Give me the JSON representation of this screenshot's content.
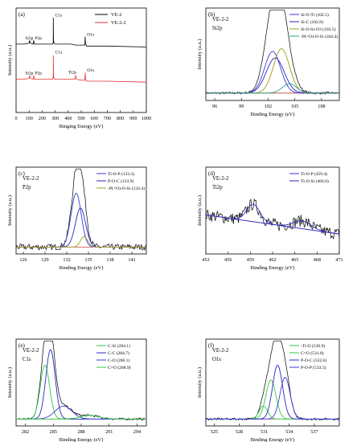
{
  "chart_data": [
    {
      "type": "line",
      "panel_label": "(a)",
      "xlabel": "Binging Energy (eV)",
      "ylabel": "Intensity (a.u.)",
      "xlim": [
        0,
        1000
      ],
      "xticks": [
        0,
        100,
        200,
        300,
        400,
        500,
        600,
        700,
        800,
        900,
        1000
      ],
      "legend": "top-right",
      "series": [
        {
          "name": "VE-2",
          "color": "#000000",
          "points": [
            [
              0,
              72
            ],
            [
              60,
              72
            ],
            [
              100,
              73
            ],
            [
              105,
              76
            ],
            [
              110,
              73
            ],
            [
              130,
              72
            ],
            [
              135,
              76
            ],
            [
              140,
              72
            ],
            [
              280,
              72
            ],
            [
              285,
              74
            ],
            [
              286,
              100
            ],
            [
              287,
              78
            ],
            [
              290,
              73
            ],
            [
              300,
              72
            ],
            [
              420,
              72
            ],
            [
              460,
              71
            ],
            [
              500,
              71
            ],
            [
              528,
              71
            ],
            [
              531,
              80
            ],
            [
              533,
              73
            ],
            [
              540,
              70
            ],
            [
              700,
              70
            ],
            [
              1000,
              69
            ]
          ]
        },
        {
          "name": "VE-2-2",
          "color": "#e53030",
          "points": [
            [
              0,
              35
            ],
            [
              60,
              35
            ],
            [
              100,
              36
            ],
            [
              105,
              39
            ],
            [
              110,
              36
            ],
            [
              130,
              35
            ],
            [
              135,
              39
            ],
            [
              140,
              35
            ],
            [
              280,
              35
            ],
            [
              285,
              37
            ],
            [
              286,
              60
            ],
            [
              287,
              41
            ],
            [
              290,
              36
            ],
            [
              300,
              35
            ],
            [
              450,
              35
            ],
            [
              459,
              39
            ],
            [
              462,
              35
            ],
            [
              500,
              34
            ],
            [
              528,
              34
            ],
            [
              531,
              42
            ],
            [
              533,
              36
            ],
            [
              540,
              33
            ],
            [
              700,
              33
            ],
            [
              1000,
              32
            ]
          ]
        }
      ],
      "annotations": [
        {
          "text": "C1s",
          "x": 300,
          "y": 101
        },
        {
          "text": "O1s",
          "x": 545,
          "y": 81
        },
        {
          "text": "Si2p",
          "x": 70,
          "y": 77
        },
        {
          "text": "P2p",
          "x": 145,
          "y": 77
        },
        {
          "text": "C1s",
          "x": 300,
          "y": 62
        },
        {
          "text": "Ti2p",
          "x": 400,
          "y": 41
        },
        {
          "text": "O1s",
          "x": 545,
          "y": 43
        },
        {
          "text": "Si2p",
          "x": 70,
          "y": 40
        },
        {
          "text": "P2p",
          "x": 145,
          "y": 40
        }
      ]
    },
    {
      "type": "line",
      "panel_label": "(b)",
      "sample": "VE-2-2",
      "element": "Si2p",
      "xlabel": "Binding Energy (eV)",
      "ylabel": "Intensity (a.u.)",
      "xlim": [
        95,
        110
      ],
      "xticks": [
        96,
        99,
        102,
        105,
        108
      ],
      "legend": "top-right",
      "series": [
        {
          "name": "Si-O-Ti (102.5)",
          "color": "#3a3ad8",
          "peak": {
            "center": 102.5,
            "height": 45,
            "width": 0.9
          }
        },
        {
          "name": "Si-C (102.8)",
          "color": "#2828c0",
          "peak": {
            "center": 102.8,
            "height": 38,
            "width": 1.0
          }
        },
        {
          "name": "Si-O-Si-O3 (103.5)",
          "color": "#a09a20",
          "peak": {
            "center": 103.5,
            "height": 48,
            "width": 0.9
          }
        },
        {
          "name": "-P(=O)-O-Si (104.4)",
          "color": "#30a090",
          "peak": {
            "center": 104.4,
            "height": 10,
            "width": 0.8
          }
        }
      ]
    },
    {
      "type": "line",
      "panel_label": "(c)",
      "sample": "VE-2-2",
      "element": "P2p",
      "xlabel": "Binding Energy (eV)",
      "ylabel": "Intensity (a.u.)",
      "xlim": [
        125,
        143
      ],
      "xticks": [
        126,
        129,
        132,
        135,
        138,
        141
      ],
      "legend": "top-right",
      "series": [
        {
          "name": "Ti-O-P (133.3)",
          "color": "#3a3ad8",
          "peak": {
            "center": 133.3,
            "height": 62,
            "width": 0.7
          }
        },
        {
          "name": "P-O-C (133.9)",
          "color": "#2828c0",
          "peak": {
            "center": 133.9,
            "height": 45,
            "width": 0.7
          }
        },
        {
          "name": "-P(=O)-O-Si (134.4)",
          "color": "#a09a20",
          "peak": {
            "center": 134.4,
            "height": 12,
            "width": 0.5
          }
        }
      ]
    },
    {
      "type": "line",
      "panel_label": "(d)",
      "sample": "VE-2-2",
      "element": "Ti2p",
      "xlabel": "Binding Energy (eV)",
      "ylabel": "Intensity (a.u.)",
      "xlim": [
        453,
        471
      ],
      "xticks": [
        453,
        456,
        459,
        462,
        465,
        468,
        471
      ],
      "legend": "top-right",
      "series": [
        {
          "name": "Ti-O-P (459.4)",
          "color": "#3a3ad8",
          "peak": {
            "center": 459.4,
            "height": 20,
            "width": 0.9
          }
        },
        {
          "name": "Ti-O-Si (466.0)",
          "color": "#2828c0",
          "peak": {
            "center": 466.0,
            "height": 9,
            "width": 1.2
          }
        }
      ]
    },
    {
      "type": "line",
      "panel_label": "(e)",
      "sample": "VE-2-2",
      "element": "C1s",
      "xlabel": "Binding Energy (eV)",
      "ylabel": "Intensity (a.u.)",
      "xlim": [
        281,
        295
      ],
      "xticks": [
        282,
        285,
        288,
        291,
        294
      ],
      "legend": "top-right",
      "series": [
        {
          "name": "C-Si (284.1)",
          "color": "#2ecc40",
          "peak": {
            "center": 284.1,
            "height": 62,
            "width": 0.5
          }
        },
        {
          "name": "C-C (284.7)",
          "color": "#2828c0",
          "peak": {
            "center": 284.7,
            "height": 80,
            "width": 0.5
          }
        },
        {
          "name": "C-O (286.1)",
          "color": "#3a3ad8",
          "peak": {
            "center": 286.1,
            "height": 15,
            "width": 0.9
          }
        },
        {
          "name": "C=O (288.9)",
          "color": "#2ecc40",
          "peak": {
            "center": 288.9,
            "height": 4,
            "width": 1.0
          }
        }
      ]
    },
    {
      "type": "line",
      "panel_label": "(f)",
      "sample": "VE-2-2",
      "element": "O1s",
      "xlabel": "Binding Energy (eV)",
      "ylabel": "Intensity (a.u.)",
      "xlim": [
        524,
        540
      ],
      "xticks": [
        525,
        528,
        531,
        534,
        537
      ],
      "legend": "top-right",
      "series": [
        {
          "name": "-Ti-O (530.9)",
          "color": "#2ecc40",
          "peak": {
            "center": 530.9,
            "height": 15,
            "width": 0.5
          }
        },
        {
          "name": "C=O (531.8)",
          "color": "#2ecc40",
          "peak": {
            "center": 531.8,
            "height": 45,
            "width": 0.6
          }
        },
        {
          "name": "P-O-C (532.6)",
          "color": "#2828c0",
          "peak": {
            "center": 532.6,
            "height": 62,
            "width": 0.6
          }
        },
        {
          "name": "P-O-P (533.5)",
          "color": "#3a3ad8",
          "peak": {
            "center": 533.5,
            "height": 48,
            "width": 0.6
          }
        }
      ]
    }
  ]
}
